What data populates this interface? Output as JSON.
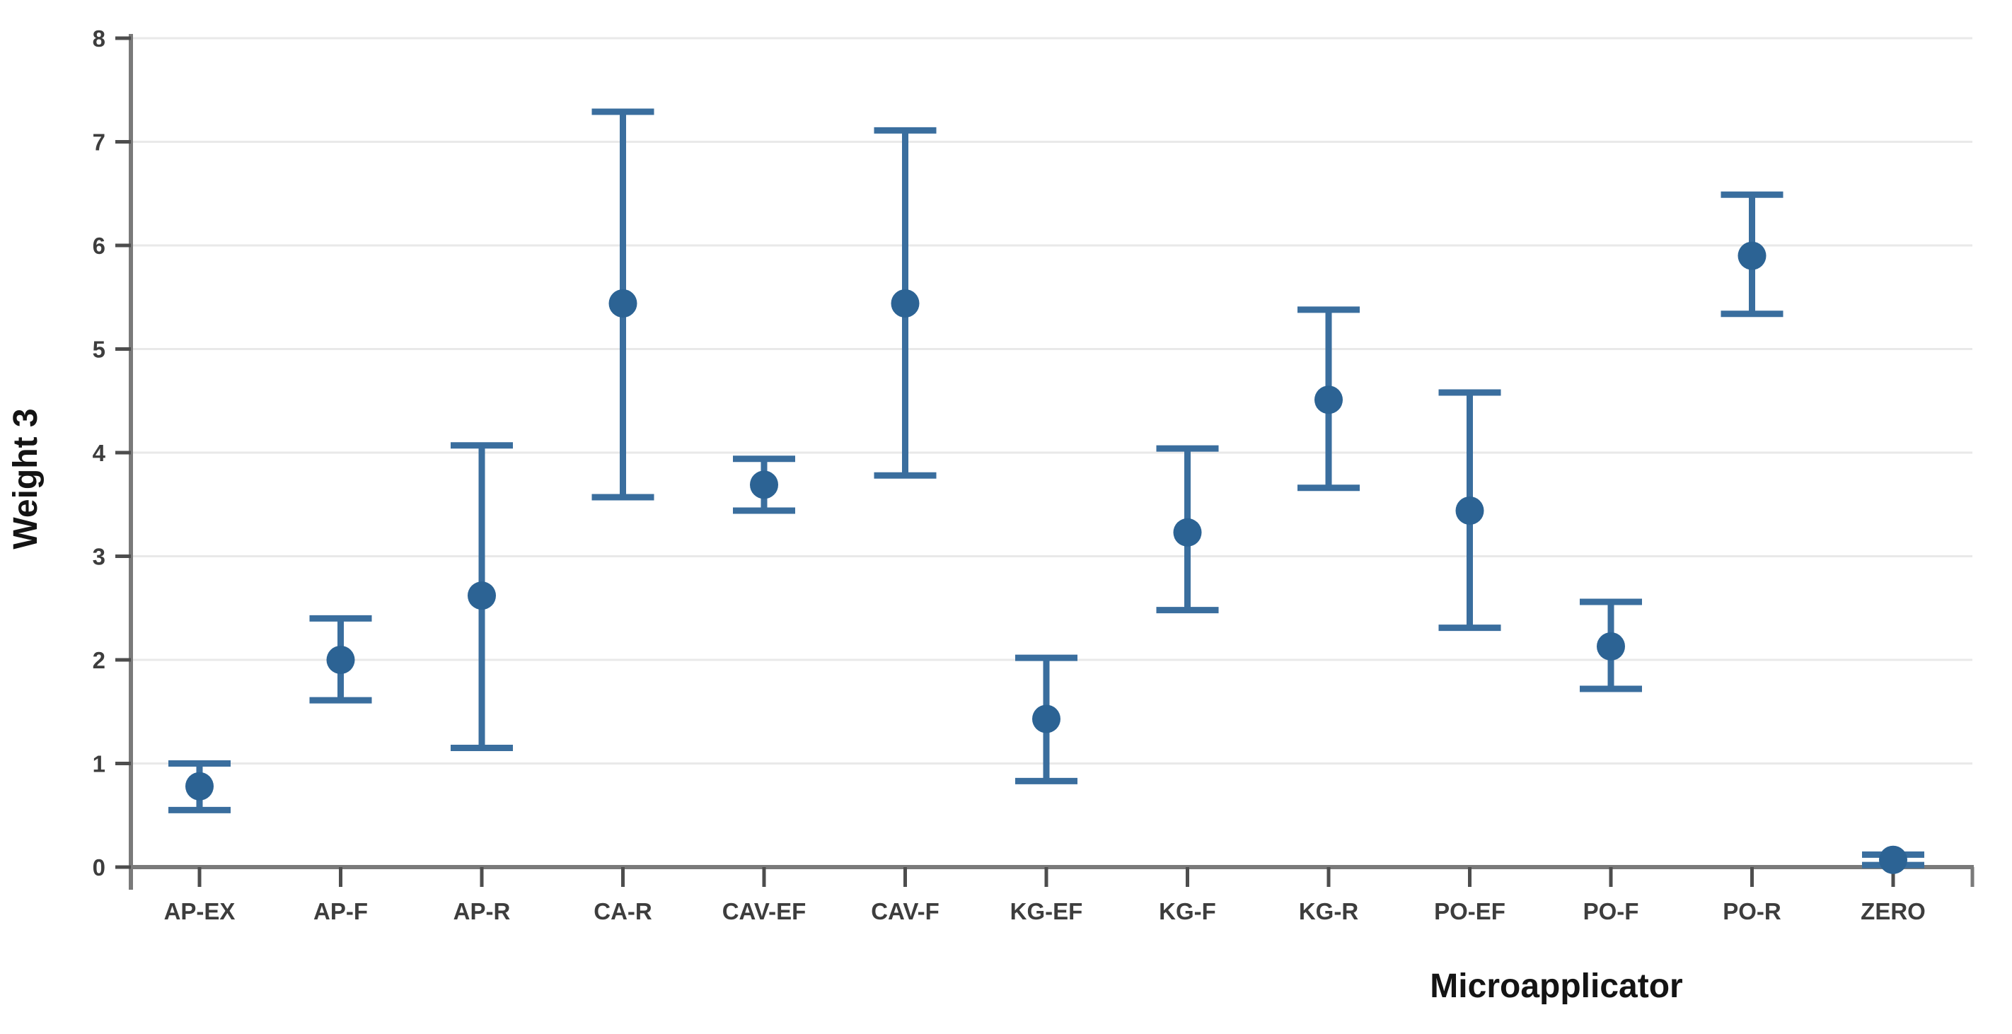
{
  "chart_data": {
    "type": "scatter",
    "subtype": "mean-with-error-bars",
    "title": "",
    "xlabel": "Microapplicator",
    "ylabel": "Weight 3",
    "ylim": [
      0,
      8
    ],
    "yticks": [
      0,
      1,
      2,
      3,
      4,
      5,
      6,
      7,
      8
    ],
    "grid": "horizontal-light-gray",
    "legend": "none",
    "categories": [
      "AP-EX",
      "AP-F",
      "AP-R",
      "CA-R",
      "CAV-EF",
      "CAV-F",
      "KG-EF",
      "KG-F",
      "KG-R",
      "PO-EF",
      "PO-F",
      "PO-R",
      "ZERO"
    ],
    "series": [
      {
        "name": "mean with confidence interval",
        "points": [
          {
            "category": "AP-EX",
            "mean": 0.78,
            "ci_low": 0.55,
            "ci_high": 1.0
          },
          {
            "category": "AP-F",
            "mean": 2.0,
            "ci_low": 1.61,
            "ci_high": 2.4
          },
          {
            "category": "AP-R",
            "mean": 2.62,
            "ci_low": 1.15,
            "ci_high": 4.07
          },
          {
            "category": "CA-R",
            "mean": 5.44,
            "ci_low": 3.57,
            "ci_high": 7.29
          },
          {
            "category": "CAV-EF",
            "mean": 3.69,
            "ci_low": 3.44,
            "ci_high": 3.94
          },
          {
            "category": "CAV-F",
            "mean": 5.44,
            "ci_low": 3.78,
            "ci_high": 7.11
          },
          {
            "category": "KG-EF",
            "mean": 1.43,
            "ci_low": 0.83,
            "ci_high": 2.02
          },
          {
            "category": "KG-F",
            "mean": 3.23,
            "ci_low": 2.48,
            "ci_high": 4.04
          },
          {
            "category": "KG-R",
            "mean": 4.51,
            "ci_low": 3.66,
            "ci_high": 5.38
          },
          {
            "category": "PO-EF",
            "mean": 3.44,
            "ci_low": 2.31,
            "ci_high": 4.58
          },
          {
            "category": "PO-F",
            "mean": 2.13,
            "ci_low": 1.72,
            "ci_high": 2.56
          },
          {
            "category": "PO-R",
            "mean": 5.9,
            "ci_low": 5.34,
            "ci_high": 6.49
          },
          {
            "category": "ZERO",
            "mean": 0.07,
            "ci_low": 0.02,
            "ci_high": 0.12
          }
        ]
      }
    ]
  },
  "colors": {
    "background": "#ffffff",
    "marker": "#2c6394",
    "error_bar": "#3a6e9e",
    "axis_line": "#7a7a7a",
    "tick_mark": "#4d4d4d",
    "gridline": "#e9e9e9",
    "tick_label": "#3d3d3d",
    "axis_title": "#141414"
  }
}
